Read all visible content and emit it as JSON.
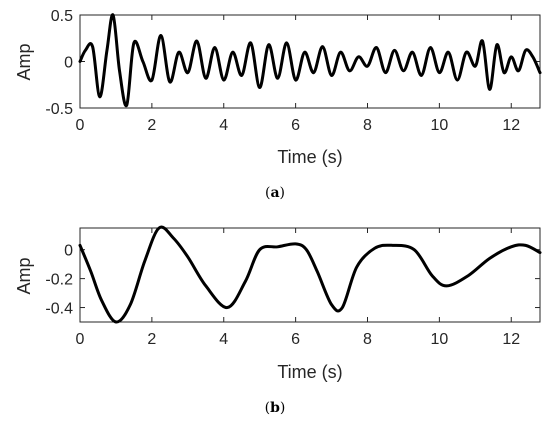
{
  "chart_data": [
    {
      "type": "line",
      "caption_letter": "a",
      "xlabel": "Time (s)",
      "ylabel": "Amp",
      "xlim": [
        0,
        12.8
      ],
      "ylim": [
        -0.5,
        0.5
      ],
      "xticks": [
        0,
        2,
        4,
        6,
        8,
        10,
        12
      ],
      "yticks": [
        0.5,
        0,
        -0.5
      ],
      "xtick_labels": [
        "0",
        "2",
        "4",
        "6",
        "8",
        "10",
        "12"
      ],
      "ytick_labels": [
        "0.5",
        "0",
        "-0.5"
      ],
      "grid": false,
      "line_color": "#000000",
      "series": [
        {
          "x": [
            0,
            0.15,
            0.35,
            0.55,
            0.75,
            0.92,
            1.1,
            1.3,
            1.5,
            1.75,
            2.0,
            2.25,
            2.5,
            2.75,
            3.0,
            3.25,
            3.5,
            3.75,
            4.0,
            4.25,
            4.5,
            4.75,
            5.0,
            5.25,
            5.5,
            5.75,
            6.0,
            6.25,
            6.5,
            6.75,
            7.0,
            7.25,
            7.5,
            7.75,
            8.0,
            8.25,
            8.5,
            8.75,
            9.0,
            9.25,
            9.5,
            9.75,
            10.0,
            10.25,
            10.5,
            10.75,
            11.0,
            11.2,
            11.4,
            11.6,
            11.8,
            12.0,
            12.2,
            12.4,
            12.6,
            12.8
          ],
          "y": [
            0.0,
            0.12,
            0.16,
            -0.38,
            0.12,
            0.5,
            -0.1,
            -0.47,
            0.2,
            0.0,
            -0.2,
            0.28,
            -0.22,
            0.1,
            -0.12,
            0.22,
            -0.18,
            0.15,
            -0.2,
            0.1,
            -0.15,
            0.2,
            -0.28,
            0.18,
            -0.18,
            0.2,
            -0.2,
            0.1,
            -0.12,
            0.16,
            -0.15,
            0.1,
            -0.1,
            0.05,
            -0.05,
            0.15,
            -0.12,
            0.12,
            -0.1,
            0.1,
            -0.15,
            0.15,
            -0.12,
            0.1,
            -0.2,
            0.1,
            -0.05,
            0.22,
            -0.3,
            0.18,
            -0.12,
            0.05,
            -0.1,
            0.12,
            0.05,
            -0.12
          ]
        }
      ]
    },
    {
      "type": "line",
      "caption_letter": "b",
      "xlabel": "Time (s)",
      "ylabel": "Amp",
      "xlim": [
        0,
        12.8
      ],
      "ylim": [
        -0.5,
        0.15
      ],
      "xticks": [
        0,
        2,
        4,
        6,
        8,
        10,
        12
      ],
      "yticks": [
        0,
        -0.2,
        -0.4
      ],
      "xtick_labels": [
        "0",
        "2",
        "4",
        "6",
        "8",
        "10",
        "12"
      ],
      "ytick_labels": [
        "0",
        "-0.2",
        "-0.4"
      ],
      "grid": false,
      "line_color": "#000000",
      "series": [
        {
          "x": [
            0,
            0.3,
            0.6,
            1.0,
            1.4,
            1.8,
            2.2,
            2.6,
            3.0,
            3.5,
            4.1,
            4.6,
            5.0,
            5.5,
            6.0,
            6.3,
            6.6,
            7.0,
            7.3,
            7.7,
            8.2,
            8.7,
            9.3,
            9.8,
            10.2,
            10.8,
            11.4,
            12.0,
            12.4,
            12.8
          ],
          "y": [
            0.03,
            -0.15,
            -0.35,
            -0.5,
            -0.38,
            -0.08,
            0.15,
            0.08,
            -0.05,
            -0.25,
            -0.4,
            -0.22,
            0.0,
            0.02,
            0.04,
            0.0,
            -0.15,
            -0.38,
            -0.4,
            -0.12,
            0.01,
            0.03,
            0.0,
            -0.18,
            -0.25,
            -0.18,
            -0.06,
            0.02,
            0.03,
            -0.02
          ]
        }
      ]
    }
  ]
}
